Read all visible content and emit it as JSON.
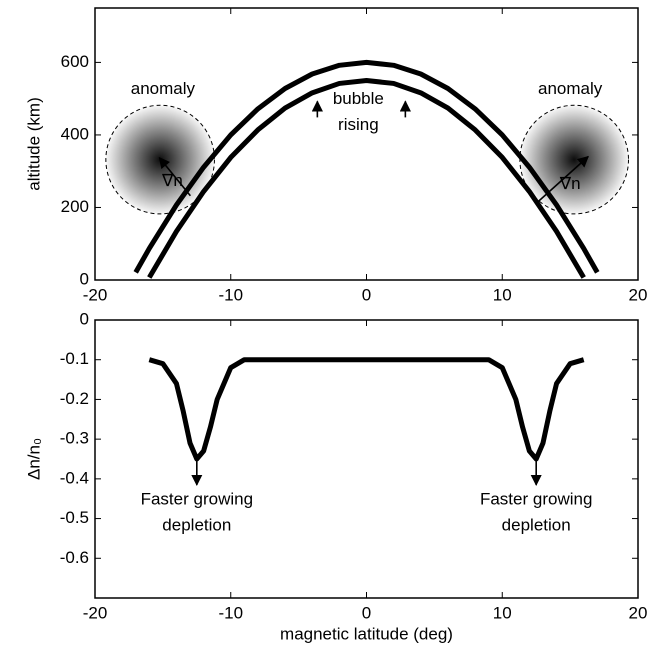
{
  "chart_data": [
    {
      "type": "line",
      "ylabel": "altitude (km)",
      "xlim": [
        -20,
        20
      ],
      "xticks": [
        -20,
        -10,
        0,
        10,
        20
      ],
      "ylim": [
        0,
        750
      ],
      "yticks": [
        0,
        200,
        400,
        600
      ],
      "series": [
        {
          "color": "#000000",
          "x": [
            -17,
            -16,
            -14,
            -12,
            -10,
            -8,
            -6,
            -4,
            -2,
            0,
            2,
            4,
            6,
            8,
            10,
            12,
            14,
            16,
            17
          ],
          "values": [
            21,
            87,
            207,
            311,
            400,
            472,
            528,
            568,
            592,
            600,
            592,
            568,
            528,
            472,
            400,
            311,
            207,
            87,
            21
          ]
        },
        {
          "color": "#000000",
          "x": [
            -16,
            -14,
            -12,
            -10,
            -8,
            -6,
            -4,
            -2,
            0,
            2,
            4,
            6,
            8,
            10,
            12,
            14,
            16
          ],
          "values": [
            7,
            134,
            244,
            338,
            414,
            474,
            516,
            542,
            550,
            542,
            516,
            474,
            414,
            338,
            244,
            134,
            7
          ]
        }
      ],
      "anomalies": [
        {
          "x": -15.2,
          "y": 332,
          "r": 4
        },
        {
          "x": 15.3,
          "y": 332,
          "r": 4
        }
      ],
      "annotations": [
        {
          "text": [
            "anomaly"
          ],
          "x": -15,
          "y": 525
        },
        {
          "text": [
            "anomaly"
          ],
          "x": 15,
          "y": 525
        },
        {
          "text": [
            "bubble",
            "rising"
          ],
          "x": -0.6,
          "y": 498
        },
        {
          "text": [
            "∇n"
          ],
          "x": -14.3,
          "y": 271
        },
        {
          "text": [
            "∇n"
          ],
          "x": 15,
          "y": 263
        }
      ]
    },
    {
      "type": "line",
      "xlabel": "magnetic latitude (deg)",
      "ylabel": "Δn/n₀",
      "xlim": [
        -20,
        20
      ],
      "xticks": [
        -20,
        -10,
        0,
        10,
        20
      ],
      "ylim": [
        -0.7,
        0
      ],
      "yticks": [
        0,
        -0.1,
        -0.2,
        -0.3,
        -0.4,
        -0.5,
        -0.6
      ],
      "series": [
        {
          "color": "#000000",
          "x": [
            -16,
            -15,
            -14,
            -13.5,
            -13,
            -12.5,
            -12,
            -11.5,
            -11,
            -10,
            -9,
            -8,
            0,
            8,
            9,
            10,
            11,
            11.5,
            12,
            12.5,
            13,
            13.5,
            14,
            15,
            16
          ],
          "values": [
            -0.1,
            -0.11,
            -0.16,
            -0.23,
            -0.31,
            -0.35,
            -0.33,
            -0.27,
            -0.2,
            -0.12,
            -0.1,
            -0.1,
            -0.1,
            -0.1,
            -0.1,
            -0.12,
            -0.2,
            -0.27,
            -0.33,
            -0.35,
            -0.31,
            -0.23,
            -0.16,
            -0.11,
            -0.1
          ]
        }
      ],
      "annotations": [
        {
          "text": [
            "Faster growing",
            "depletion"
          ],
          "x": -12.5,
          "y": -0.453
        },
        {
          "text": [
            "Faster growing",
            "depletion"
          ],
          "x": 12.5,
          "y": -0.453
        }
      ]
    }
  ]
}
